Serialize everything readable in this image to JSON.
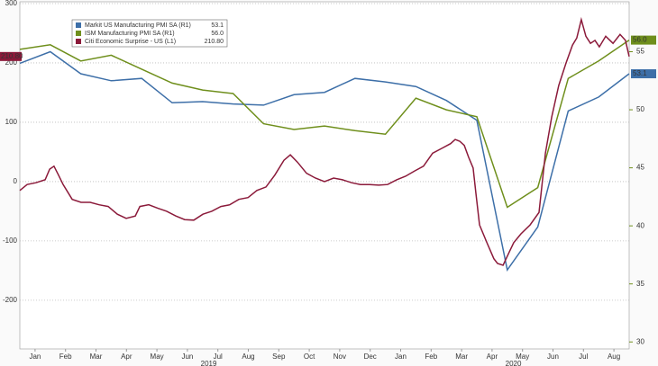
{
  "chart_data": {
    "type": "line",
    "xlim": [
      0,
      20
    ],
    "xticks": [
      {
        "value": 0.5,
        "label": "Jan"
      },
      {
        "value": 1.5,
        "label": "Feb"
      },
      {
        "value": 2.5,
        "label": "Mar"
      },
      {
        "value": 3.5,
        "label": "Apr"
      },
      {
        "value": 4.5,
        "label": "May"
      },
      {
        "value": 5.5,
        "label": "Jun"
      },
      {
        "value": 6.5,
        "label": "Jul"
      },
      {
        "value": 7.5,
        "label": "Aug"
      },
      {
        "value": 8.5,
        "label": "Sep"
      },
      {
        "value": 9.5,
        "label": "Oct"
      },
      {
        "value": 10.5,
        "label": "Nov"
      },
      {
        "value": 11.5,
        "label": "Dec"
      },
      {
        "value": 12.5,
        "label": "Jan"
      },
      {
        "value": 13.5,
        "label": "Feb"
      },
      {
        "value": 14.5,
        "label": "Mar"
      },
      {
        "value": 15.5,
        "label": "Apr"
      },
      {
        "value": 16.5,
        "label": "May"
      },
      {
        "value": 17.5,
        "label": "Jun"
      },
      {
        "value": 18.5,
        "label": "Jul"
      },
      {
        "value": 19.5,
        "label": "Aug"
      }
    ],
    "year_labels": [
      {
        "value": 6.2,
        "label": "2019"
      },
      {
        "value": 16.2,
        "label": "2020"
      }
    ],
    "ylim": [
      -282,
      303
    ],
    "yticks": [
      -200,
      -100,
      0,
      100,
      200,
      300
    ],
    "y2lim": [
      29.4,
      59.3
    ],
    "y2ticks": [
      30,
      35,
      40,
      45,
      50,
      55
    ],
    "grid": true,
    "legend": "upper left",
    "series": [
      {
        "name": "Markit US Manufacturing PMI SA (R1)",
        "last_value_label": "53.1",
        "color": "#3d6fa8",
        "axis": "y2",
        "x": [
          0,
          1,
          2,
          3,
          4,
          5,
          6,
          7,
          8,
          9,
          10,
          11,
          12,
          13,
          14,
          15,
          16,
          17,
          18,
          19,
          20
        ],
        "values": [
          54.0,
          55.0,
          53.1,
          52.5,
          52.7,
          50.6,
          50.7,
          50.5,
          50.4,
          51.3,
          51.5,
          52.7,
          52.4,
          52.0,
          50.8,
          49.1,
          36.2,
          39.9,
          49.9,
          51.1,
          53.1
        ]
      },
      {
        "name": "ISM Manufacturing PMI SA (R1)",
        "last_value_label": "56.0",
        "color": "#6f8f1c",
        "axis": "y2",
        "x": [
          0,
          1,
          2,
          3,
          4,
          5,
          6,
          7,
          8,
          9,
          10,
          11,
          12,
          13,
          14,
          15,
          16,
          17,
          18,
          19,
          20
        ],
        "values": [
          55.2,
          55.6,
          54.2,
          54.7,
          53.5,
          52.3,
          51.7,
          51.4,
          48.8,
          48.3,
          48.6,
          48.2,
          47.9,
          51.0,
          50.0,
          49.4,
          41.6,
          43.3,
          52.7,
          54.2,
          56.0
        ]
      },
      {
        "name": "Citi Economic Surprise - US (L1)",
        "last_value_label": "210.80",
        "color": "#8b1a3a",
        "x": [
          0,
          0.24,
          0.53,
          0.83,
          0.98,
          1.12,
          1.27,
          1.42,
          1.72,
          2.01,
          2.31,
          2.6,
          2.9,
          3.2,
          3.49,
          3.79,
          3.94,
          4.23,
          4.53,
          4.82,
          5.12,
          5.41,
          5.71,
          6.01,
          6.3,
          6.6,
          6.89,
          7.19,
          7.49,
          7.78,
          8.08,
          8.37,
          8.67,
          8.88,
          9.11,
          9.41,
          9.7,
          10.0,
          10.3,
          10.59,
          10.89,
          11.18,
          11.48,
          11.78,
          12.07,
          12.37,
          12.66,
          12.96,
          13.25,
          13.55,
          13.85,
          14.14,
          14.29,
          14.44,
          14.59,
          14.73,
          14.88,
          14.97,
          15.09,
          15.33,
          15.56,
          15.68,
          15.86,
          16.07,
          16.21,
          16.45,
          16.75,
          17.04,
          17.25,
          17.46,
          17.69,
          17.93,
          18.14,
          18.28,
          18.43,
          18.58,
          18.73,
          18.88,
          19.02,
          19.23,
          19.47,
          19.7,
          19.88,
          20
        ],
        "values": [
          -15,
          -5,
          -2,
          3,
          21,
          26,
          11,
          -5,
          -30,
          -35,
          -35,
          -39,
          -42,
          -55,
          -62,
          -58,
          -42,
          -39,
          -45,
          -50,
          -58,
          -64,
          -65,
          -55,
          -50,
          -42,
          -39,
          -30,
          -27,
          -15,
          -9,
          11,
          36,
          45,
          33,
          14,
          6,
          0,
          6,
          3,
          -2,
          -5,
          -5,
          -6,
          -5,
          3,
          9,
          18,
          26,
          48,
          56,
          64,
          71,
          68,
          61,
          41,
          23,
          -20,
          -73,
          -103,
          -130,
          -138,
          -141,
          -118,
          -103,
          -88,
          -73,
          -52,
          48,
          109,
          162,
          200,
          230,
          242,
          273,
          245,
          233,
          238,
          227,
          245,
          233,
          248,
          238,
          210.8
        ]
      }
    ]
  }
}
